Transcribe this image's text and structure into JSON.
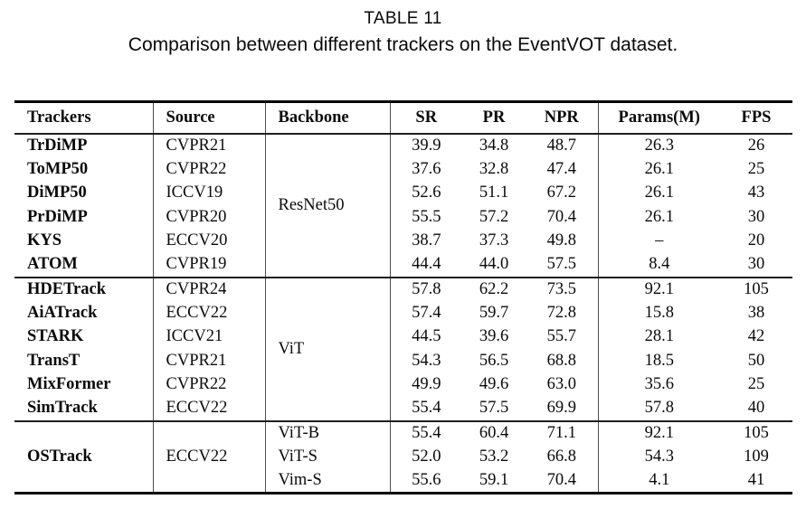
{
  "title": "TABLE 11",
  "caption": "Comparison between different trackers on the EventVOT dataset.",
  "colors": {
    "text": "#0a0a0a",
    "background": "#ffffff",
    "thick_rule": "#000000",
    "thin_rule": "#4d4d4d"
  },
  "table": {
    "columns": [
      "Trackers",
      "Source",
      "Backbone",
      "SR",
      "PR",
      "NPR",
      "Params(M)",
      "FPS"
    ],
    "groups": [
      {
        "backbone": "ResNet50",
        "rows": [
          {
            "tracker": "TrDiMP",
            "source": "CVPR21",
            "sr": "39.9",
            "pr": "34.8",
            "npr": "48.7",
            "params": "26.3",
            "fps": "26"
          },
          {
            "tracker": "ToMP50",
            "source": "CVPR22",
            "sr": "37.6",
            "pr": "32.8",
            "npr": "47.4",
            "params": "26.1",
            "fps": "25"
          },
          {
            "tracker": "DiMP50",
            "source": "ICCV19",
            "sr": "52.6",
            "pr": "51.1",
            "npr": "67.2",
            "params": "26.1",
            "fps": "43"
          },
          {
            "tracker": "PrDiMP",
            "source": "CVPR20",
            "sr": "55.5",
            "pr": "57.2",
            "npr": "70.4",
            "params": "26.1",
            "fps": "30"
          },
          {
            "tracker": "KYS",
            "source": "ECCV20",
            "sr": "38.7",
            "pr": "37.3",
            "npr": "49.8",
            "params": "–",
            "fps": "20"
          },
          {
            "tracker": "ATOM",
            "source": "CVPR19",
            "sr": "44.4",
            "pr": "44.0",
            "npr": "57.5",
            "params": "8.4",
            "fps": "30"
          }
        ]
      },
      {
        "backbone": "ViT",
        "rows": [
          {
            "tracker": "HDETrack",
            "source": "CVPR24",
            "sr": "57.8",
            "pr": "62.2",
            "npr": "73.5",
            "params": "92.1",
            "fps": "105"
          },
          {
            "tracker": "AiATrack",
            "source": "ECCV22",
            "sr": "57.4",
            "pr": "59.7",
            "npr": "72.8",
            "params": "15.8",
            "fps": "38"
          },
          {
            "tracker": "STARK",
            "source": "ICCV21",
            "sr": "44.5",
            "pr": "39.6",
            "npr": "55.7",
            "params": "28.1",
            "fps": "42"
          },
          {
            "tracker": "TransT",
            "source": "CVPR21",
            "sr": "54.3",
            "pr": "56.5",
            "npr": "68.8",
            "params": "18.5",
            "fps": "50"
          },
          {
            "tracker": "MixFormer",
            "source": "CVPR22",
            "sr": "49.9",
            "pr": "49.6",
            "npr": "63.0",
            "params": "35.6",
            "fps": "25"
          },
          {
            "tracker": "SimTrack",
            "source": "ECCV22",
            "sr": "55.4",
            "pr": "57.5",
            "npr": "69.9",
            "params": "57.8",
            "fps": "40"
          }
        ]
      },
      {
        "tracker": "OSTrack",
        "source": "ECCV22",
        "rows": [
          {
            "backbone": "ViT-B",
            "sr": "55.4",
            "pr": "60.4",
            "npr": "71.1",
            "params": "92.1",
            "fps": "105"
          },
          {
            "backbone": "ViT-S",
            "sr": "52.0",
            "pr": "53.2",
            "npr": "66.8",
            "params": "54.3",
            "fps": "109"
          },
          {
            "backbone": "Vim-S",
            "sr": "55.6",
            "pr": "59.1",
            "npr": "70.4",
            "params": "4.1",
            "fps": "41"
          }
        ]
      }
    ]
  }
}
